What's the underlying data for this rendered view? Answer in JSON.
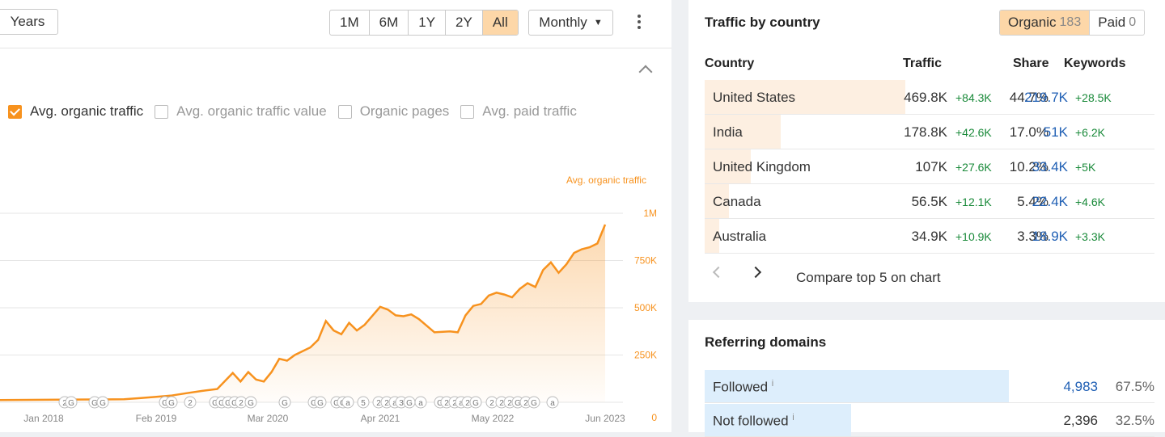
{
  "header": {
    "years_label": "Years",
    "ranges": [
      "1M",
      "6M",
      "1Y",
      "2Y",
      "All"
    ],
    "active_range": "All",
    "interval_label": "Monthly"
  },
  "metrics": [
    {
      "label": "Avg. organic traffic",
      "checked": true
    },
    {
      "label": "Avg. organic traffic value",
      "checked": false
    },
    {
      "label": "Organic pages",
      "checked": false
    },
    {
      "label": "Avg. paid traffic",
      "checked": false
    }
  ],
  "chart_data": {
    "type": "area",
    "series": [
      {
        "name": "Avg. organic traffic",
        "color": "#f7921e"
      }
    ],
    "x_ticks": [
      "Jan 2018",
      "Feb 2019",
      "Mar 2020",
      "Apr 2021",
      "May 2022",
      "Jun 2023"
    ],
    "y_ticks": [
      "1M",
      "750K",
      "500K",
      "250K",
      "0"
    ],
    "ylim": [
      0,
      1000000
    ],
    "points": [
      [
        0,
        12000
      ],
      [
        4,
        13000
      ],
      [
        8,
        14000
      ],
      [
        12,
        15000
      ],
      [
        16,
        16000
      ],
      [
        18,
        22000
      ],
      [
        20,
        28000
      ],
      [
        22,
        35000
      ],
      [
        24,
        48000
      ],
      [
        26,
        60000
      ],
      [
        28,
        70000
      ],
      [
        30,
        155000
      ],
      [
        31,
        110000
      ],
      [
        32,
        160000
      ],
      [
        33,
        120000
      ],
      [
        34,
        110000
      ],
      [
        35,
        160000
      ],
      [
        36,
        230000
      ],
      [
        37,
        220000
      ],
      [
        38,
        250000
      ],
      [
        40,
        290000
      ],
      [
        41,
        330000
      ],
      [
        42,
        430000
      ],
      [
        43,
        380000
      ],
      [
        44,
        360000
      ],
      [
        45,
        420000
      ],
      [
        46,
        380000
      ],
      [
        47,
        410000
      ],
      [
        49,
        505000
      ],
      [
        50,
        490000
      ],
      [
        51,
        460000
      ],
      [
        52,
        455000
      ],
      [
        53,
        465000
      ],
      [
        54,
        440000
      ],
      [
        56,
        370000
      ],
      [
        58,
        375000
      ],
      [
        59,
        370000
      ],
      [
        60,
        460000
      ],
      [
        61,
        510000
      ],
      [
        62,
        520000
      ],
      [
        63,
        565000
      ],
      [
        64,
        580000
      ],
      [
        65,
        570000
      ],
      [
        66,
        555000
      ],
      [
        67,
        600000
      ],
      [
        68,
        630000
      ],
      [
        69,
        610000
      ],
      [
        70,
        700000
      ],
      [
        71,
        740000
      ],
      [
        72,
        685000
      ],
      [
        73,
        730000
      ],
      [
        74,
        790000
      ],
      [
        75,
        810000
      ],
      [
        76,
        820000
      ],
      [
        77,
        840000
      ],
      [
        78,
        940000
      ]
    ],
    "x_max": 78,
    "event_markers": [
      "2",
      "G",
      "G",
      "G",
      "G",
      "G",
      "2",
      "G",
      "G",
      "G",
      "G",
      "2",
      "G",
      "G",
      "G",
      "G",
      "G",
      "G",
      "a",
      "5",
      "2",
      "2",
      "a",
      "3",
      "G",
      "a",
      "G",
      "2",
      "2",
      "a",
      "2",
      "G",
      "2",
      "2",
      "2",
      "G",
      "2",
      "G",
      "a"
    ]
  },
  "traffic_by_country": {
    "title": "Traffic by country",
    "organic_label": "Organic",
    "organic_count": "183",
    "paid_label": "Paid",
    "paid_count": "0",
    "columns": [
      "Country",
      "Traffic",
      "Share",
      "Keywords"
    ],
    "rows": [
      {
        "country": "United States",
        "traffic": "469.8K",
        "traffic_change": "+84.3K",
        "share": "44.7%",
        "share_val": 44.7,
        "keywords": "219.7K",
        "kw_change": "+28.5K"
      },
      {
        "country": "India",
        "traffic": "178.8K",
        "traffic_change": "+42.6K",
        "share": "17.0%",
        "share_val": 17.0,
        "keywords": "51K",
        "kw_change": "+6.2K"
      },
      {
        "country": "United Kingdom",
        "traffic": "107K",
        "traffic_change": "+27.6K",
        "share": "10.2%",
        "share_val": 10.2,
        "keywords": "33.4K",
        "kw_change": "+5K"
      },
      {
        "country": "Canada",
        "traffic": "56.5K",
        "traffic_change": "+12.1K",
        "share": "5.4%",
        "share_val": 5.4,
        "keywords": "22.4K",
        "kw_change": "+4.6K"
      },
      {
        "country": "Australia",
        "traffic": "34.9K",
        "traffic_change": "+10.9K",
        "share": "3.3%",
        "share_val": 3.3,
        "keywords": "18.9K",
        "kw_change": "+3.3K"
      }
    ],
    "compare_label": "Compare top 5 on chart"
  },
  "referring_domains": {
    "title": "Referring domains",
    "rows": [
      {
        "label": "Followed",
        "info": "i",
        "value": "4,983",
        "share": "67.5%",
        "share_val": 67.5
      },
      {
        "label": "Not followed",
        "info": "i",
        "value": "2,396",
        "share": "32.5%",
        "share_val": 32.5
      }
    ]
  }
}
